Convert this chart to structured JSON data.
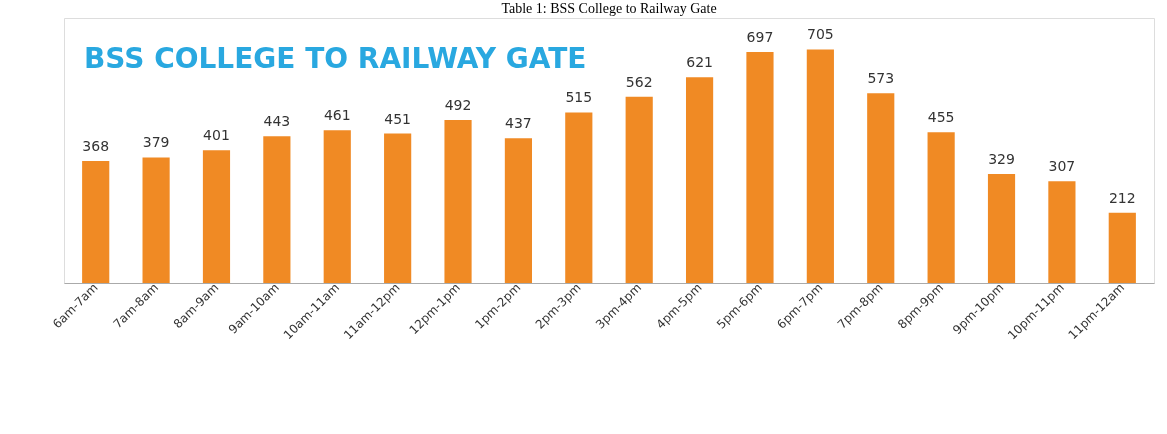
{
  "chart_data": {
    "type": "bar",
    "title": "BSS COLLEGE TO RAILWAY GATE",
    "annotations": [
      "Table 1: BSS College to Railway Gate"
    ],
    "categories": [
      "6am-7am",
      "7am-8am",
      "8am-9am",
      "9am-10am",
      "10am-11am",
      "11am-12pm",
      "12pm-1pm",
      "1pm-2pm",
      "2pm-3pm",
      "3pm-4pm",
      "4pm-5pm",
      "5pm-6pm",
      "6pm-7pm",
      "7pm-8pm",
      "8pm-9pm",
      "9pm-10pm",
      "10pm-11pm",
      "11pm-12am"
    ],
    "values": [
      368,
      379,
      401,
      443,
      461,
      451,
      492,
      437,
      515,
      562,
      621,
      697,
      705,
      573,
      455,
      329,
      307,
      212
    ],
    "color": "#f08a24",
    "ylim": [
      0,
      800
    ],
    "data_labels": true,
    "tick_labels": "x",
    "grid": false
  }
}
